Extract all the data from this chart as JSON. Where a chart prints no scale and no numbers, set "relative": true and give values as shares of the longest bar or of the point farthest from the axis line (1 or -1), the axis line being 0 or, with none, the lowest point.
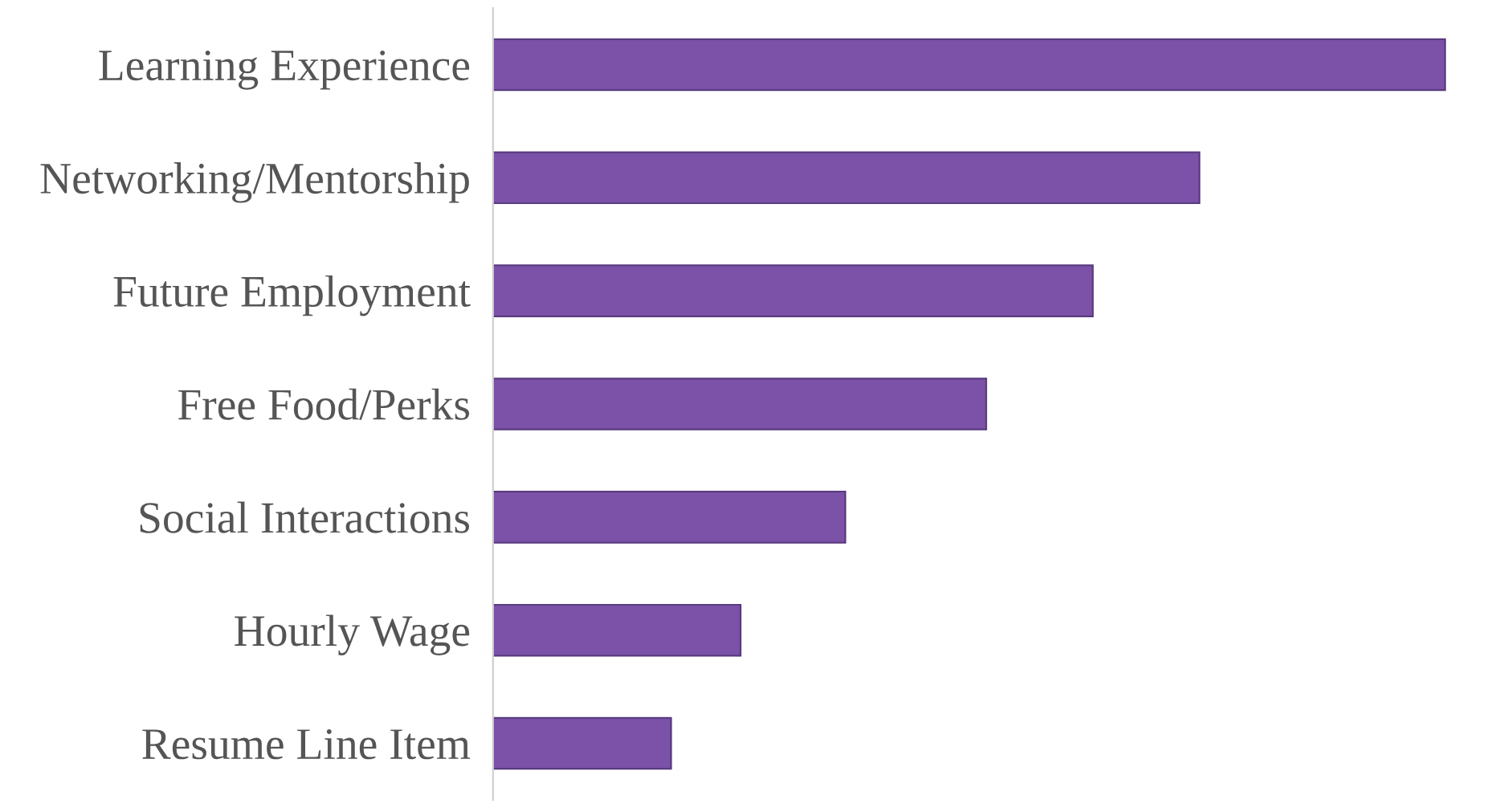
{
  "chart_data": {
    "type": "bar",
    "orientation": "horizontal",
    "relative": true,
    "categories": [
      "Learning Experience",
      "Networking/Mentorship",
      "Future Employment",
      "Free Food/Perks",
      "Social Interactions",
      "Hourly Wage",
      "Resume Line Item"
    ],
    "values": [
      1,
      0.742,
      0.63,
      0.518,
      0.37,
      0.26,
      0.187
    ],
    "color": "#7b52a8",
    "grid": false,
    "legend": false
  }
}
